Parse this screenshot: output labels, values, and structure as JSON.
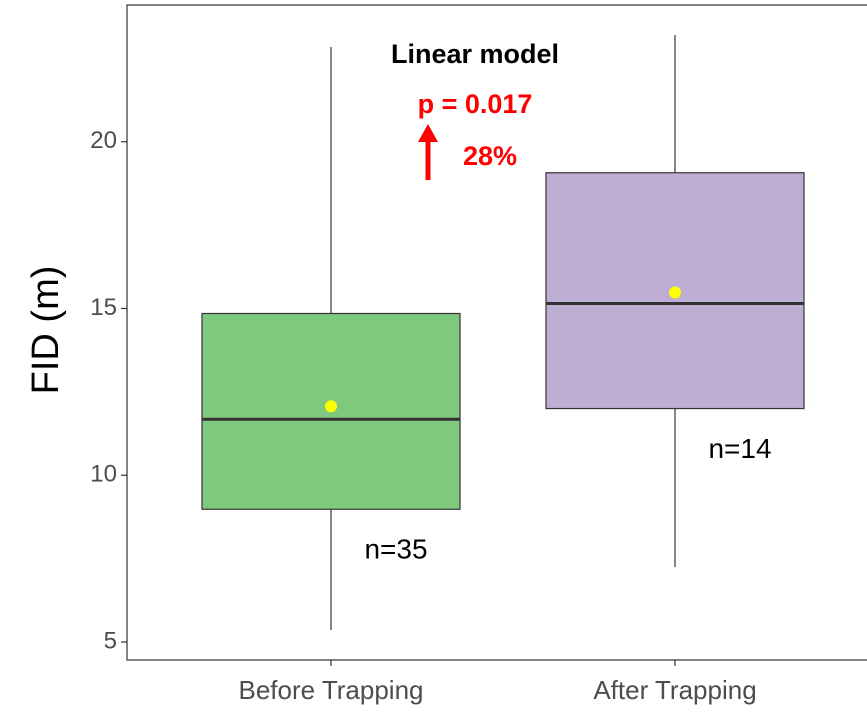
{
  "chart_data": {
    "type": "box",
    "ylabel": "FID (m)",
    "categories": [
      "Before Trapping",
      "After Trapping"
    ],
    "series": [
      {
        "color": "#7fc97f",
        "whisker_low": 5.36,
        "q1": 8.98,
        "median": 11.68,
        "q3": 14.85,
        "whisker_high": 22.84,
        "mean": 12.07,
        "n_label": "n=35"
      },
      {
        "color": "#beaed4",
        "whisker_low": 7.25,
        "q1": 12.0,
        "median": 15.15,
        "q3": 19.07,
        "whisker_high": 23.2,
        "mean": 15.48,
        "n_label": "n=14"
      }
    ],
    "mean_color": "#ffff00",
    "ylim": [
      4.46,
      24.1
    ],
    "yticks": [
      5,
      10,
      15,
      20
    ],
    "annotations": {
      "model": "Linear model",
      "p_value": "p = 0.017",
      "change": "28%"
    }
  }
}
